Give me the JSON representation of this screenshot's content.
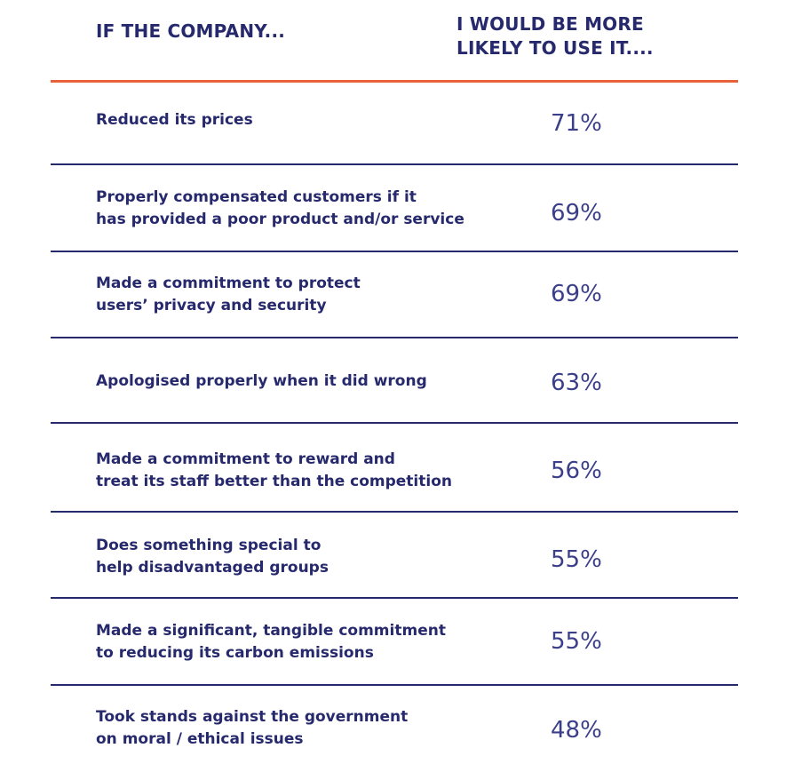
{
  "header": {
    "left": "IF THE COMPANY...",
    "right": "I WOULD BE MORE\nLIKELY TO USE IT...."
  },
  "colors": {
    "text": "#27296d",
    "accent_rule": "#e8613a",
    "row_rule": "#27296d"
  },
  "rows": [
    {
      "label": "Reduced its prices",
      "value": "71%"
    },
    {
      "label": "Properly compensated customers if it\nhas provided a poor product and/or service",
      "value": "69%"
    },
    {
      "label": "Made a commitment to protect\nusers’ privacy and security",
      "value": "69%"
    },
    {
      "label": "Apologised properly when it did wrong",
      "value": "63%"
    },
    {
      "label": "Made a commitment to reward and\ntreat its staff better than the competition",
      "value": "56%"
    },
    {
      "label": "Does something special to\nhelp disadvantaged groups",
      "value": "55%"
    },
    {
      "label": "Made a significant, tangible commitment\nto reducing its carbon emissions",
      "value": "55%"
    },
    {
      "label": "Took stands against the government\non moral / ethical issues",
      "value": "48%"
    }
  ]
}
